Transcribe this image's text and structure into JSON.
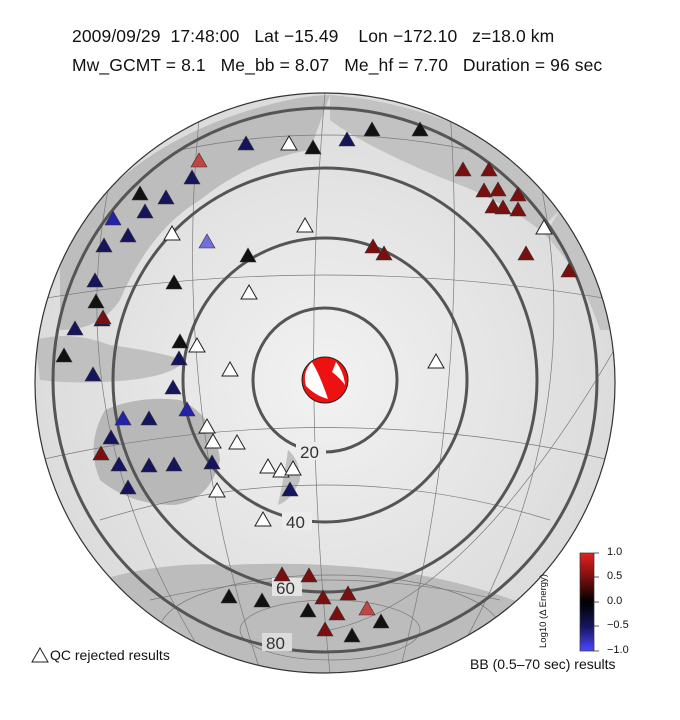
{
  "header": {
    "line1": "2009/09/29  17:48:00   Lat −15.49    Lon −172.10   z=18.0 km",
    "line2": "Mw_GCMT = 8.1   Me_bb = 8.07   Me_hf = 7.70   Duration = 96 sec"
  },
  "map": {
    "projection": "azimuthal-equidistant",
    "center": "epicenter",
    "distance_ring_labels": [
      "20",
      "40",
      "60",
      "80"
    ],
    "colors": {
      "ring": "#555555",
      "graticule": "#777777",
      "land": "#b9b9b9",
      "ocean": "#ececec",
      "beachball_fill": "#ee1111"
    },
    "focal_mechanism_icon": "beachball-icon"
  },
  "stations": {
    "colors": {
      "rejected": "#ffffff",
      "dark_red": "#7a0f0f",
      "red": "#a11a1a",
      "light_red": "#c14545",
      "black": "#111111",
      "navy": "#15155e",
      "blue": "#2222aa",
      "light_blue": "#6f6fe0",
      "pale_blue": "#9b9bf0"
    }
  },
  "legend": {
    "qc_rejected_label": "QC rejected results",
    "qc_icon": "open-triangle-icon",
    "bb_label": "BB (0.5–70 sec) results"
  },
  "colorbar": {
    "label": "Log10 (Δ Energy)",
    "ticks": [
      "1.0",
      "0.5",
      "0.0",
      "−0.5",
      "−1.0"
    ],
    "range": [
      -1.0,
      1.0
    ],
    "colors": {
      "top": "#e22222",
      "mid": "#000000",
      "bottom": "#3a3aff"
    }
  }
}
